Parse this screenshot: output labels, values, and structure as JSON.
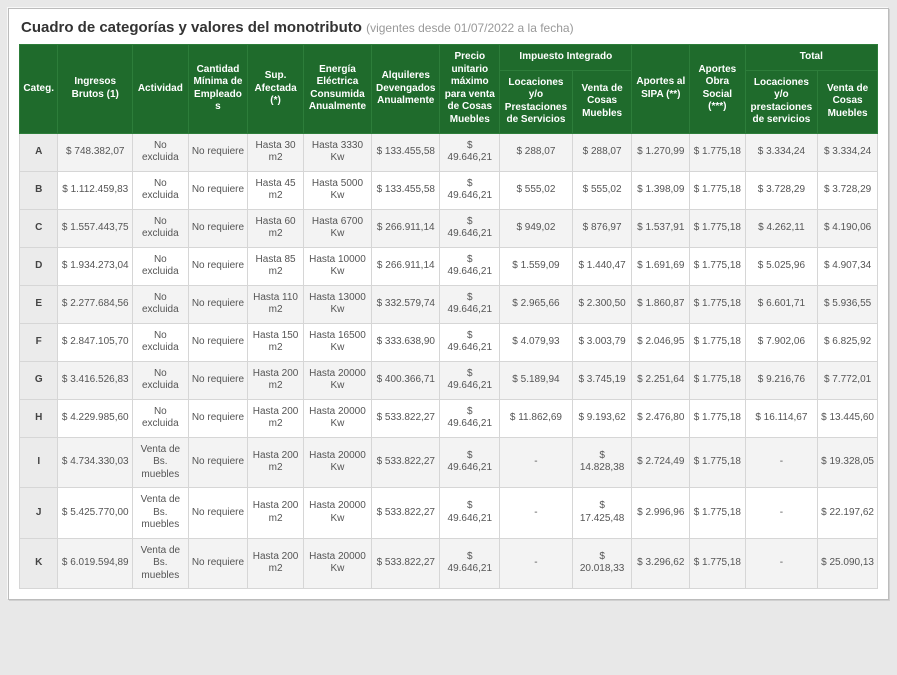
{
  "title": "Cuadro de categorías y valores del monotributo",
  "subtitle": "(vigentes desde 01/07/2022 a la fecha)",
  "header_bg": "#1f6b2c",
  "headers": {
    "categ": "Categ.",
    "ingresos": "Ingresos Brutos (1)",
    "actividad": "Actividad",
    "cantidad": "Cantidad Mínima de Empleados",
    "sup": "Sup. Afectada (*)",
    "energia": "Energía Eléctrica Consumida Anualmente",
    "alquileres": "Alquileres Devengados Anualmente",
    "precio": "Precio unitario máximo para venta de Cosas Muebles",
    "impuesto": "Impuesto Integrado",
    "loc": "Locaciones y/o Prestaciones de Servicios",
    "venta": "Venta de Cosas Muebles",
    "sipa": "Aportes al SIPA (**)",
    "obra": "Aportes Obra Social (***)",
    "total": "Total",
    "tloc": "Locaciones y/o prestaciones de servicios",
    "tventa": "Venta de Cosas Muebles"
  },
  "rows": [
    {
      "cat": "A",
      "ing": "$ 748.382,07",
      "act": "No excluida",
      "emp": "No requiere",
      "sup": "Hasta 30 m2",
      "ene": "Hasta 3330 Kw",
      "alq": "$ 133.455,58",
      "pre": "$ 49.646,21",
      "loc": "$ 288,07",
      "ven": "$ 288,07",
      "sipa": "$ 1.270,99",
      "obra": "$ 1.775,18",
      "tloc": "$ 3.334,24",
      "tven": "$ 3.334,24"
    },
    {
      "cat": "B",
      "ing": "$ 1.112.459,83",
      "act": "No excluida",
      "emp": "No requiere",
      "sup": "Hasta 45 m2",
      "ene": "Hasta 5000 Kw",
      "alq": "$ 133.455,58",
      "pre": "$ 49.646,21",
      "loc": "$ 555,02",
      "ven": "$ 555,02",
      "sipa": "$ 1.398,09",
      "obra": "$ 1.775,18",
      "tloc": "$ 3.728,29",
      "tven": "$ 3.728,29"
    },
    {
      "cat": "C",
      "ing": "$ 1.557.443,75",
      "act": "No excluida",
      "emp": "No requiere",
      "sup": "Hasta 60 m2",
      "ene": "Hasta 6700 Kw",
      "alq": "$ 266.911,14",
      "pre": "$ 49.646,21",
      "loc": "$ 949,02",
      "ven": "$ 876,97",
      "sipa": "$ 1.537,91",
      "obra": "$ 1.775,18",
      "tloc": "$ 4.262,11",
      "tven": "$ 4.190,06"
    },
    {
      "cat": "D",
      "ing": "$ 1.934.273,04",
      "act": "No excluida",
      "emp": "No requiere",
      "sup": "Hasta 85 m2",
      "ene": "Hasta 10000 Kw",
      "alq": "$ 266.911,14",
      "pre": "$ 49.646,21",
      "loc": "$ 1.559,09",
      "ven": "$ 1.440,47",
      "sipa": "$ 1.691,69",
      "obra": "$ 1.775,18",
      "tloc": "$ 5.025,96",
      "tven": "$ 4.907,34"
    },
    {
      "cat": "E",
      "ing": "$ 2.277.684,56",
      "act": "No excluida",
      "emp": "No requiere",
      "sup": "Hasta 110 m2",
      "ene": "Hasta 13000 Kw",
      "alq": "$ 332.579,74",
      "pre": "$ 49.646,21",
      "loc": "$ 2.965,66",
      "ven": "$ 2.300,50",
      "sipa": "$ 1.860,87",
      "obra": "$ 1.775,18",
      "tloc": "$ 6.601,71",
      "tven": "$ 5.936,55"
    },
    {
      "cat": "F",
      "ing": "$ 2.847.105,70",
      "act": "No excluida",
      "emp": "No requiere",
      "sup": "Hasta 150 m2",
      "ene": "Hasta 16500 Kw",
      "alq": "$ 333.638,90",
      "pre": "$ 49.646,21",
      "loc": "$ 4.079,93",
      "ven": "$ 3.003,79",
      "sipa": "$ 2.046,95",
      "obra": "$ 1.775,18",
      "tloc": "$ 7.902,06",
      "tven": "$ 6.825,92"
    },
    {
      "cat": "G",
      "ing": "$ 3.416.526,83",
      "act": "No excluida",
      "emp": "No requiere",
      "sup": "Hasta 200 m2",
      "ene": "Hasta 20000 Kw",
      "alq": "$ 400.366,71",
      "pre": "$ 49.646,21",
      "loc": "$ 5.189,94",
      "ven": "$ 3.745,19",
      "sipa": "$ 2.251,64",
      "obra": "$ 1.775,18",
      "tloc": "$ 9.216,76",
      "tven": "$ 7.772,01"
    },
    {
      "cat": "H",
      "ing": "$ 4.229.985,60",
      "act": "No excluida",
      "emp": "No requiere",
      "sup": "Hasta 200 m2",
      "ene": "Hasta 20000 Kw",
      "alq": "$ 533.822,27",
      "pre": "$ 49.646,21",
      "loc": "$ 11.862,69",
      "ven": "$ 9.193,62",
      "sipa": "$ 2.476,80",
      "obra": "$ 1.775,18",
      "tloc": "$ 16.114,67",
      "tven": "$ 13.445,60"
    },
    {
      "cat": "I",
      "ing": "$ 4.734.330,03",
      "act": "Venta de Bs. muebles",
      "emp": "No requiere",
      "sup": "Hasta 200 m2",
      "ene": "Hasta 20000 Kw",
      "alq": "$ 533.822,27",
      "pre": "$ 49.646,21",
      "loc": "-",
      "ven": "$ 14.828,38",
      "sipa": "$ 2.724,49",
      "obra": "$ 1.775,18",
      "tloc": "-",
      "tven": "$ 19.328,05"
    },
    {
      "cat": "J",
      "ing": "$ 5.425.770,00",
      "act": "Venta de Bs. muebles",
      "emp": "No requiere",
      "sup": "Hasta 200 m2",
      "ene": "Hasta 20000 Kw",
      "alq": "$ 533.822,27",
      "pre": "$ 49.646,21",
      "loc": "-",
      "ven": "$ 17.425,48",
      "sipa": "$ 2.996,96",
      "obra": "$ 1.775,18",
      "tloc": "-",
      "tven": "$ 22.197,62"
    },
    {
      "cat": "K",
      "ing": "$ 6.019.594,89",
      "act": "Venta de Bs. muebles",
      "emp": "No requiere",
      "sup": "Hasta 200 m2",
      "ene": "Hasta 20000 Kw",
      "alq": "$ 533.822,27",
      "pre": "$ 49.646,21",
      "loc": "-",
      "ven": "$ 20.018,33",
      "sipa": "$ 3.296,62",
      "obra": "$ 1.775,18",
      "tloc": "-",
      "tven": "$ 25.090,13"
    }
  ]
}
